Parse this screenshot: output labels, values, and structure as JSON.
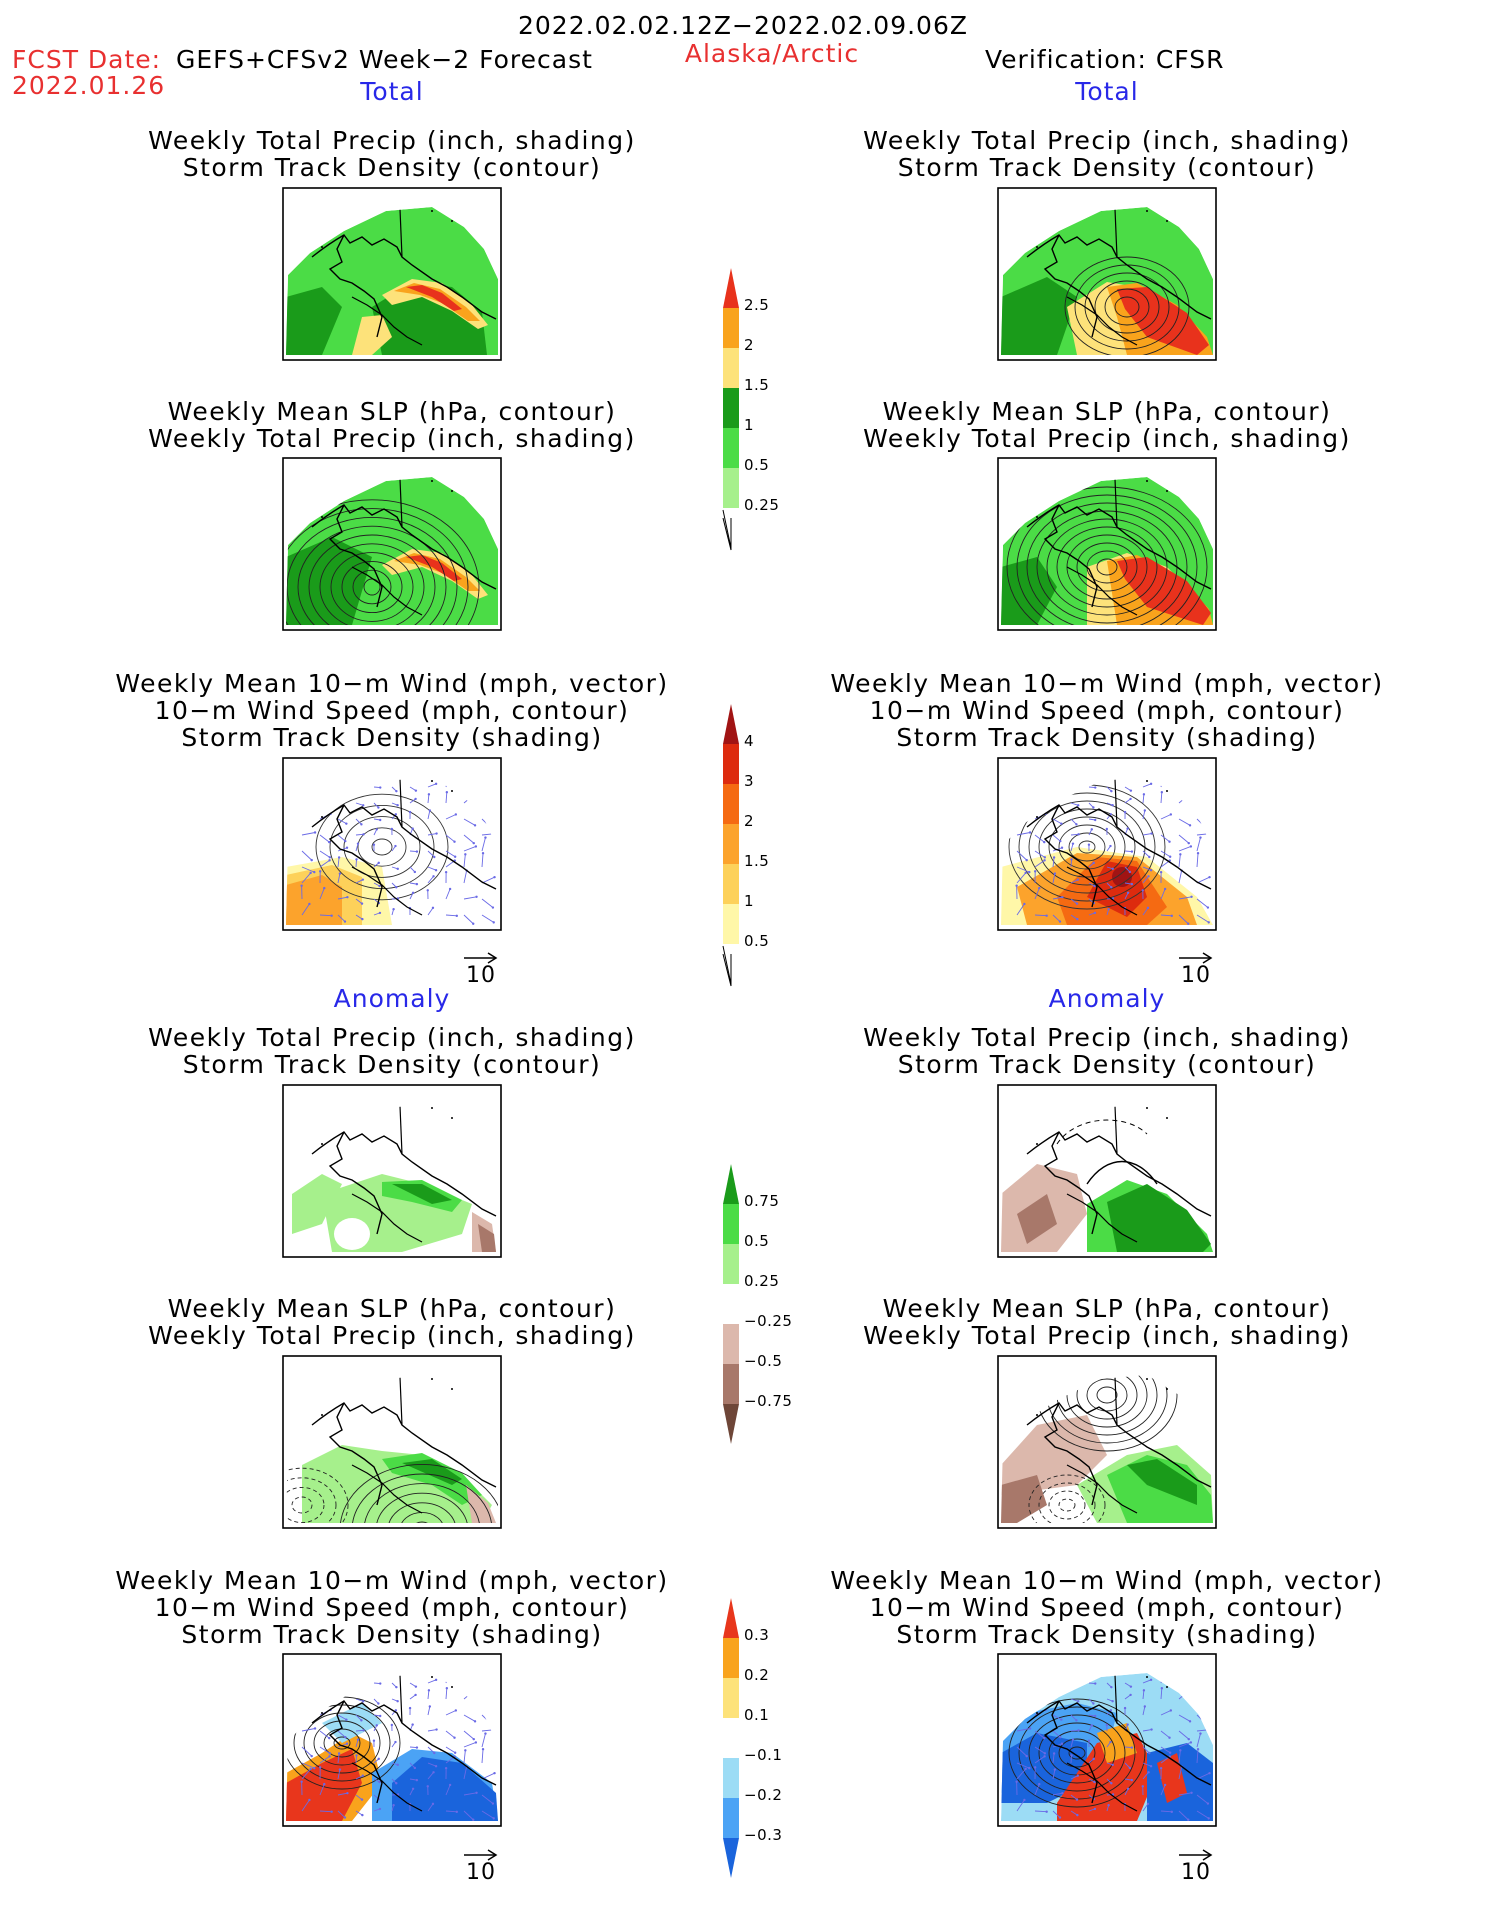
{
  "header": {
    "date_range": "2022.02.02.12Z−2022.02.09.06Z",
    "fcst_prefix": "FCST Date:",
    "fcst_model": "GEFS+CFSv2 Week−2 Forecast",
    "fcst_date": "2022.01.26",
    "region": "Alaska/Arctic",
    "verification": "Verification: CFSR"
  },
  "sections": [
    {
      "label": "Total",
      "column": "left"
    },
    {
      "label": "Total",
      "column": "right"
    },
    {
      "label": "Anomaly",
      "column": "left"
    },
    {
      "label": "Anomaly",
      "column": "right"
    }
  ],
  "panels": [
    {
      "title": [
        "Weekly Total Precip (inch, shading)",
        "Storm Track Density (contour)"
      ],
      "map": "precip_total_fcst"
    },
    {
      "title": [
        "Weekly Total Precip (inch, shading)",
        "Storm Track Density (contour)"
      ],
      "map": "precip_total_obs"
    },
    {
      "title": [
        "Weekly Mean SLP (hPa, contour)",
        "Weekly Total Precip (inch, shading)"
      ],
      "map": "slp_total_fcst"
    },
    {
      "title": [
        "Weekly Mean SLP (hPa, contour)",
        "Weekly Total Precip (inch, shading)"
      ],
      "map": "slp_total_obs"
    },
    {
      "title": [
        "Weekly Mean 10−m Wind (mph, vector)",
        "10−m Wind Speed (mph, contour)",
        "Storm Track Density (shading)"
      ],
      "map": "wind_total_fcst"
    },
    {
      "title": [
        "Weekly Mean 10−m Wind (mph, vector)",
        "10−m Wind Speed (mph, contour)",
        "Storm Track Density (shading)"
      ],
      "map": "wind_total_obs"
    },
    {
      "title": [
        "Weekly Total Precip (inch, shading)",
        "Storm Track Density (contour)"
      ],
      "map": "precip_anom_fcst"
    },
    {
      "title": [
        "Weekly Total Precip (inch, shading)",
        "Storm Track Density (contour)"
      ],
      "map": "precip_anom_obs"
    },
    {
      "title": [
        "Weekly Mean SLP (hPa, contour)",
        "Weekly Total Precip (inch, shading)"
      ],
      "map": "slp_anom_fcst"
    },
    {
      "title": [
        "Weekly Mean SLP (hPa, contour)",
        "Weekly Total Precip (inch, shading)"
      ],
      "map": "slp_anom_obs"
    },
    {
      "title": [
        "Weekly Mean 10−m Wind (mph, vector)",
        "10−m Wind Speed (mph, contour)",
        "Storm Track Density (shading)"
      ],
      "map": "wind_anom_fcst"
    },
    {
      "title": [
        "Weekly Mean 10−m Wind (mph, vector)",
        "10−m Wind Speed (mph, contour)",
        "Storm Track Density (shading)"
      ],
      "map": "wind_anom_obs"
    }
  ],
  "vector_reference": "10",
  "colorbars": [
    {
      "name": "precip-total",
      "labels": [
        "0.25",
        "0.5",
        "1",
        "1.5",
        "2",
        "2.5"
      ],
      "colors": [
        "#a6f08c",
        "#4bdc46",
        "#1a9b1a",
        "#fde27a",
        "#f9a31c",
        "#e8321c"
      ]
    },
    {
      "name": "storm-density-total",
      "labels": [
        "0.5",
        "1",
        "1.5",
        "2",
        "3",
        "4"
      ],
      "colors": [
        "#fff7a8",
        "#fdd15a",
        "#fca32c",
        "#f56a12",
        "#dd2b0e",
        "#a11414"
      ]
    },
    {
      "name": "precip-anomaly",
      "labels": [
        "−0.75",
        "−0.5",
        "−0.25",
        "0.25",
        "0.5",
        "0.75"
      ],
      "colors": [
        "#6e4638",
        "#a8786a",
        "#dcb8ac",
        "#ffffff",
        "#a6f08c",
        "#4bdc46",
        "#1a9b1a"
      ]
    },
    {
      "name": "storm-density-anomaly",
      "labels": [
        "−0.3",
        "−0.2",
        "−0.1",
        "0.1",
        "0.2",
        "0.3"
      ],
      "colors": [
        "#1a64dc",
        "#4ba3f5",
        "#9cdcf5",
        "#ffffff",
        "#fde27a",
        "#f9a31c",
        "#e8361c"
      ]
    }
  ],
  "colors": {
    "text_red": "#e83030",
    "text_blue": "#2828e8",
    "vector": "#6a6ae6"
  }
}
